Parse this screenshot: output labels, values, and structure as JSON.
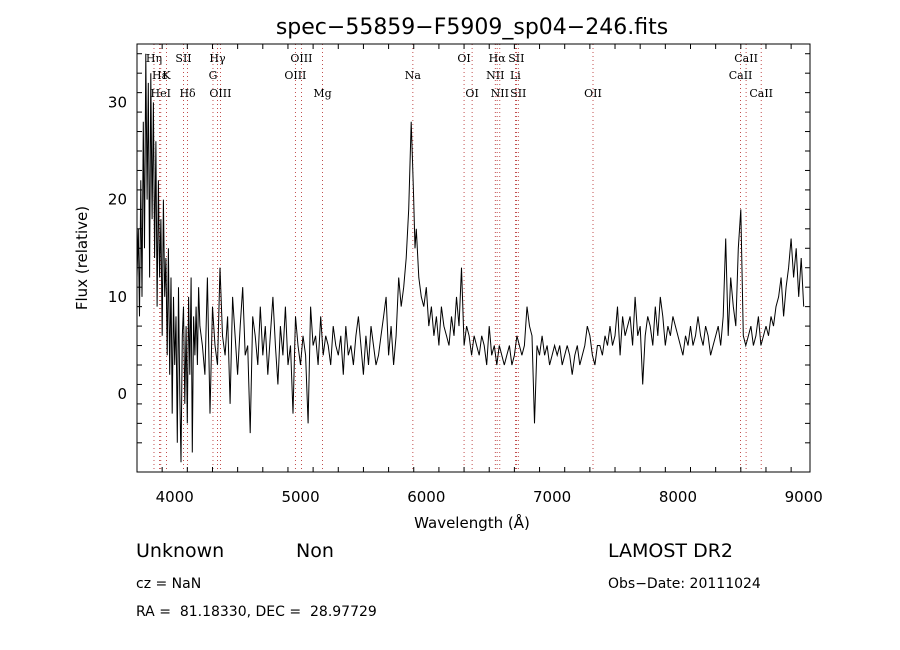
{
  "chart_data": {
    "type": "line",
    "title": "spec−55859−F5909_sp04−246.fits",
    "xlabel": "Wavelength (Å)",
    "ylabel": "Flux (relative)",
    "xlim": [
      3700,
      9050
    ],
    "ylim": [
      -8,
      36
    ],
    "x_ticks": [
      4000,
      5000,
      6000,
      7000,
      8000,
      9000
    ],
    "y_ticks": [
      0,
      10,
      20,
      30
    ],
    "grid": false,
    "lines": [
      {
        "label": "Hη",
        "x": 3835,
        "row": 1
      },
      {
        "label": "Hε",
        "x": 3880,
        "row": 2
      },
      {
        "label": "K",
        "x": 3934,
        "row": 2
      },
      {
        "label": "HeI",
        "x": 3889,
        "row": 3
      },
      {
        "label": "SII",
        "x": 4070,
        "row": 1
      },
      {
        "label": "Hδ",
        "x": 4102,
        "row": 3
      },
      {
        "label": "Hγ",
        "x": 4340,
        "row": 1
      },
      {
        "label": "G",
        "x": 4304,
        "row": 2
      },
      {
        "label": "OIII",
        "x": 4363,
        "row": 3
      },
      {
        "label": "OIII",
        "x": 4959,
        "row": 2
      },
      {
        "label": "OIII",
        "x": 5007,
        "row": 1
      },
      {
        "label": "Mg",
        "x": 5175,
        "row": 3
      },
      {
        "label": "Na",
        "x": 5893,
        "row": 2
      },
      {
        "label": "OI",
        "x": 6300,
        "row": 1
      },
      {
        "label": "OI",
        "x": 6364,
        "row": 3
      },
      {
        "label": "Hα",
        "x": 6563,
        "row": 1
      },
      {
        "label": "SII",
        "x": 6716,
        "row": 1
      },
      {
        "label": "NII",
        "x": 6548,
        "row": 2
      },
      {
        "label": "Li",
        "x": 6708,
        "row": 2
      },
      {
        "label": "NII",
        "x": 6584,
        "row": 3
      },
      {
        "label": "SII",
        "x": 6731,
        "row": 3
      },
      {
        "label": "OII",
        "x": 7325,
        "row": 3
      },
      {
        "label": "CaII",
        "x": 8498,
        "row": 2
      },
      {
        "label": "CaII",
        "x": 8542,
        "row": 1
      },
      {
        "label": "CaII",
        "x": 8662,
        "row": 3
      }
    ],
    "series": [
      {
        "x": [
          3700,
          3710,
          3720,
          3730,
          3740,
          3750,
          3760,
          3770,
          3780,
          3790,
          3800,
          3810,
          3820,
          3830,
          3840,
          3850,
          3860,
          3870,
          3880,
          3890,
          3900,
          3910,
          3920,
          3930,
          3940,
          3950,
          3960,
          3970,
          3980,
          3990,
          4000,
          4010,
          4020,
          4030,
          4040,
          4050,
          4060,
          4070,
          4080,
          4090,
          4100,
          4110,
          4120,
          4130,
          4140,
          4150,
          4160,
          4170,
          4180,
          4190,
          4200,
          4220,
          4240,
          4260,
          4280,
          4300,
          4320,
          4340,
          4360,
          4380,
          4400,
          4420,
          4440,
          4460,
          4480,
          4500,
          4520,
          4540,
          4560,
          4580,
          4600,
          4620,
          4640,
          4660,
          4680,
          4700,
          4720,
          4740,
          4760,
          4780,
          4800,
          4820,
          4840,
          4860,
          4880,
          4900,
          4920,
          4940,
          4960,
          4980,
          5000,
          5020,
          5040,
          5060,
          5080,
          5100,
          5120,
          5140,
          5160,
          5180,
          5200,
          5220,
          5240,
          5260,
          5280,
          5300,
          5320,
          5340,
          5360,
          5380,
          5400,
          5420,
          5440,
          5460,
          5480,
          5500,
          5520,
          5540,
          5560,
          5580,
          5600,
          5620,
          5640,
          5660,
          5680,
          5700,
          5720,
          5740,
          5760,
          5780,
          5800,
          5820,
          5840,
          5860,
          5880,
          5890,
          5900,
          5910,
          5920,
          5940,
          5960,
          5980,
          6000,
          6020,
          6040,
          6060,
          6080,
          6100,
          6120,
          6140,
          6160,
          6180,
          6200,
          6220,
          6240,
          6260,
          6280,
          6300,
          6320,
          6340,
          6360,
          6380,
          6400,
          6420,
          6440,
          6460,
          6480,
          6500,
          6520,
          6540,
          6560,
          6580,
          6600,
          6620,
          6640,
          6660,
          6680,
          6700,
          6720,
          6740,
          6760,
          6780,
          6800,
          6820,
          6840,
          6860,
          6880,
          6900,
          6920,
          6940,
          6960,
          6980,
          7000,
          7020,
          7040,
          7060,
          7080,
          7100,
          7120,
          7140,
          7160,
          7180,
          7200,
          7220,
          7240,
          7260,
          7280,
          7300,
          7320,
          7340,
          7360,
          7380,
          7400,
          7420,
          7440,
          7460,
          7480,
          7500,
          7520,
          7540,
          7560,
          7580,
          7600,
          7620,
          7640,
          7660,
          7680,
          7700,
          7720,
          7740,
          7760,
          7780,
          7800,
          7820,
          7840,
          7860,
          7880,
          7900,
          7920,
          7940,
          7960,
          7980,
          8000,
          8020,
          8040,
          8060,
          8080,
          8100,
          8120,
          8140,
          8160,
          8180,
          8200,
          8220,
          8240,
          8260,
          8280,
          8300,
          8320,
          8340,
          8360,
          8380,
          8400,
          8420,
          8440,
          8460,
          8480,
          8500,
          8520,
          8540,
          8560,
          8580,
          8600,
          8620,
          8640,
          8660,
          8680,
          8700,
          8720,
          8740,
          8760,
          8780,
          8800,
          8820,
          8840,
          8860,
          8880,
          8900,
          8920,
          8940,
          8960,
          8980,
          9000
        ],
        "y": [
          12,
          17,
          8,
          22,
          10,
          28,
          15,
          35,
          20,
          32,
          12,
          33,
          18,
          30,
          14,
          26,
          9,
          22,
          12,
          18,
          6,
          20,
          10,
          14,
          4,
          15,
          2,
          12,
          -2,
          10,
          3,
          8,
          -5,
          11,
          0,
          -7,
          6,
          9,
          -1,
          7,
          -3,
          10,
          2,
          12,
          -6,
          8,
          4,
          9,
          3,
          11,
          7,
          5,
          2,
          12,
          -2,
          9,
          5,
          3,
          13,
          6,
          4,
          8,
          -1,
          10,
          6,
          2,
          7,
          11,
          4,
          5,
          -4,
          8,
          6,
          3,
          9,
          4,
          7,
          2,
          6,
          10,
          5,
          1,
          7,
          4,
          9,
          3,
          5,
          -2,
          8,
          5,
          3,
          6,
          4,
          -3,
          9,
          5,
          6,
          3,
          8,
          4,
          6,
          5,
          3,
          7,
          5,
          4,
          6,
          2,
          7,
          4,
          5,
          3,
          6,
          8,
          5,
          2,
          6,
          3,
          7,
          5,
          3,
          4,
          6,
          8,
          10,
          4,
          7,
          3,
          6,
          12,
          9,
          11,
          14,
          19,
          28,
          24,
          20,
          15,
          17,
          12,
          10,
          9,
          11,
          7,
          9,
          6,
          8,
          5,
          9,
          7,
          6,
          5,
          8,
          6,
          10,
          7,
          13,
          5,
          7,
          6,
          4,
          6,
          5,
          4,
          6,
          5,
          3,
          7,
          4,
          5,
          3,
          5,
          4,
          3,
          4,
          5,
          3,
          4,
          6,
          5,
          4,
          5,
          9,
          7,
          6,
          -3,
          5,
          4,
          6,
          4,
          5,
          3,
          4,
          5,
          4,
          5,
          3,
          4,
          5,
          4,
          2,
          4,
          5,
          3,
          4,
          5,
          7,
          6,
          4,
          3,
          5,
          5,
          4,
          6,
          5,
          7,
          5,
          6,
          9,
          4,
          8,
          6,
          7,
          8,
          5,
          10,
          6,
          7,
          1,
          6,
          8,
          7,
          5,
          9,
          6,
          10,
          8,
          5,
          7,
          6,
          8,
          7,
          6,
          5,
          4,
          6,
          5,
          7,
          5,
          6,
          8,
          6,
          5,
          7,
          6,
          4,
          5,
          6,
          7,
          5,
          8,
          16,
          6,
          12,
          9,
          7,
          15,
          19,
          6,
          5,
          6,
          7,
          5,
          6,
          8,
          5,
          6,
          7,
          6,
          8,
          7,
          9,
          10,
          12,
          8,
          11,
          13,
          16,
          12,
          15,
          10,
          14,
          9
        ]
      }
    ]
  },
  "info": {
    "class_label": "Unknown",
    "subclass_label": "Non",
    "survey_label": "LAMOST DR2",
    "cz_text": "cz = NaN",
    "obs_date_text": "Obs−Date: 20111024",
    "coord_text": "RA =  81.18330, DEC =  28.97729"
  }
}
